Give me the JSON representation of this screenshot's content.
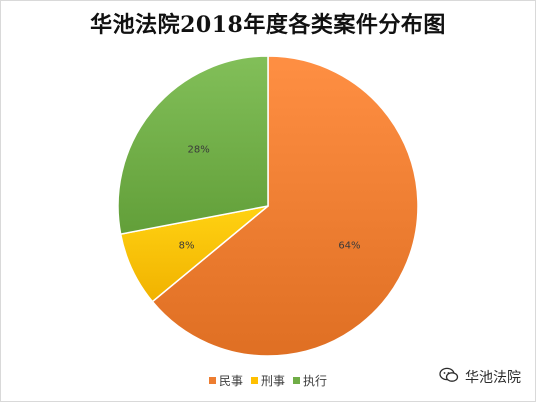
{
  "chart_data": {
    "type": "pie",
    "title": "华池法院2018年度各类案件分布图",
    "slices": [
      {
        "label": "民事",
        "value": 64,
        "display": "64%",
        "color": "#ED7D31"
      },
      {
        "label": "刑事",
        "value": 8,
        "display": "8%",
        "color": "#FFC000"
      },
      {
        "label": "执行",
        "value": 28,
        "display": "28%",
        "color": "#70AD47"
      }
    ],
    "legend_position": "bottom",
    "start_angle_deg": 0,
    "direction": "clockwise"
  },
  "watermark": {
    "text": "华池法院",
    "icon": "wechat-icon"
  }
}
